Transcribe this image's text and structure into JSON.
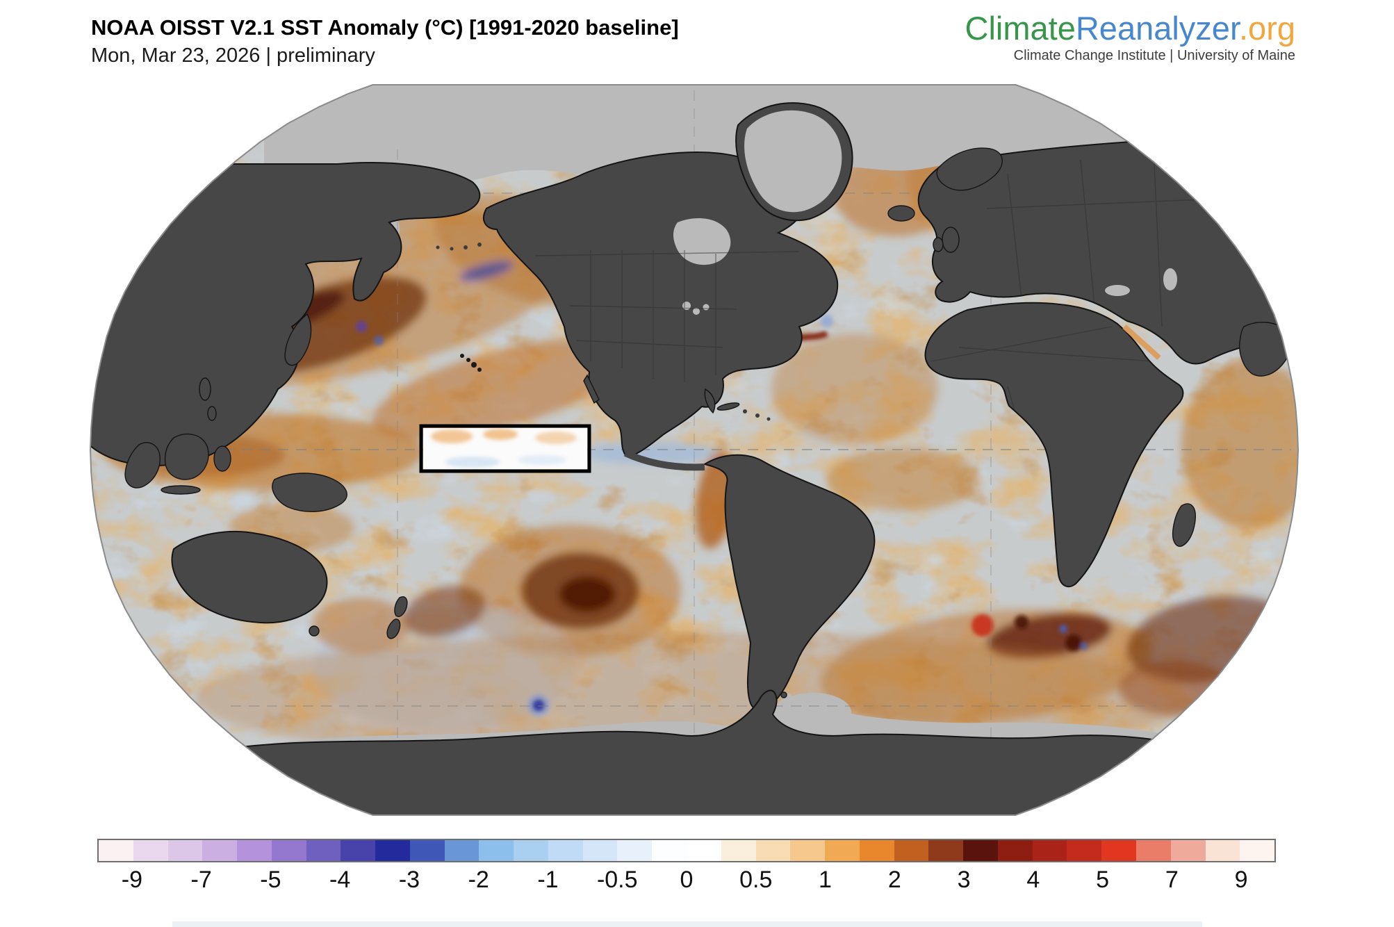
{
  "header": {
    "title": "NOAA OISST V2.1 SST Anomaly (°C) [1991-2020 baseline]",
    "subtitle": "Mon, Mar 23, 2026 | preliminary"
  },
  "brand": {
    "name_primary": "Climate",
    "name_secondary": "Reanalyzer",
    "name_suffix": ".org",
    "tagline": "Climate Change Institute | University of Maine",
    "colors": {
      "primary": "#36964a",
      "secondary": "#4687cf",
      "suffix": "#f2a63e",
      "tagline": "#3d3d3d"
    }
  },
  "map": {
    "projection": "robinson",
    "region_box": {
      "name": "Nino 3.4 region highlight"
    },
    "colors": {
      "land": "#474747",
      "coastline": "#141414",
      "ice": "#bababb",
      "ocean_base": "#c8cbcc",
      "outline": "#8b8b8b"
    }
  },
  "colorbar": {
    "unit": "°C",
    "ticks": [
      "-9",
      "-7",
      "-5",
      "-4",
      "-3",
      "-2",
      "-1",
      "-0.5",
      "0",
      "0.5",
      "1",
      "2",
      "3",
      "4",
      "5",
      "7",
      "9"
    ],
    "segments": [
      "#fbf0f2",
      "#ead9ee",
      "#dcc7e9",
      "#cbaee2",
      "#b592dc",
      "#9478cf",
      "#6f60c0",
      "#4842ab",
      "#232a9c",
      "#3f57b7",
      "#6896d6",
      "#8cbfeb",
      "#a9cff1",
      "#c0dbf5",
      "#d5e6f8",
      "#e7f0fb",
      "#fdfeff",
      "#ffffff",
      "#faeedd",
      "#f8dcb4",
      "#f6c88e",
      "#f1a954",
      "#e8872b",
      "#c2611f",
      "#8f3a1b",
      "#5a140d",
      "#8e1d12",
      "#aa2318",
      "#c52b1c",
      "#e13620",
      "#e97d67",
      "#f0aa9b",
      "#f8e3d4",
      "#fdf4f0"
    ]
  },
  "footer_band": {
    "color": "#ecf1f6"
  }
}
